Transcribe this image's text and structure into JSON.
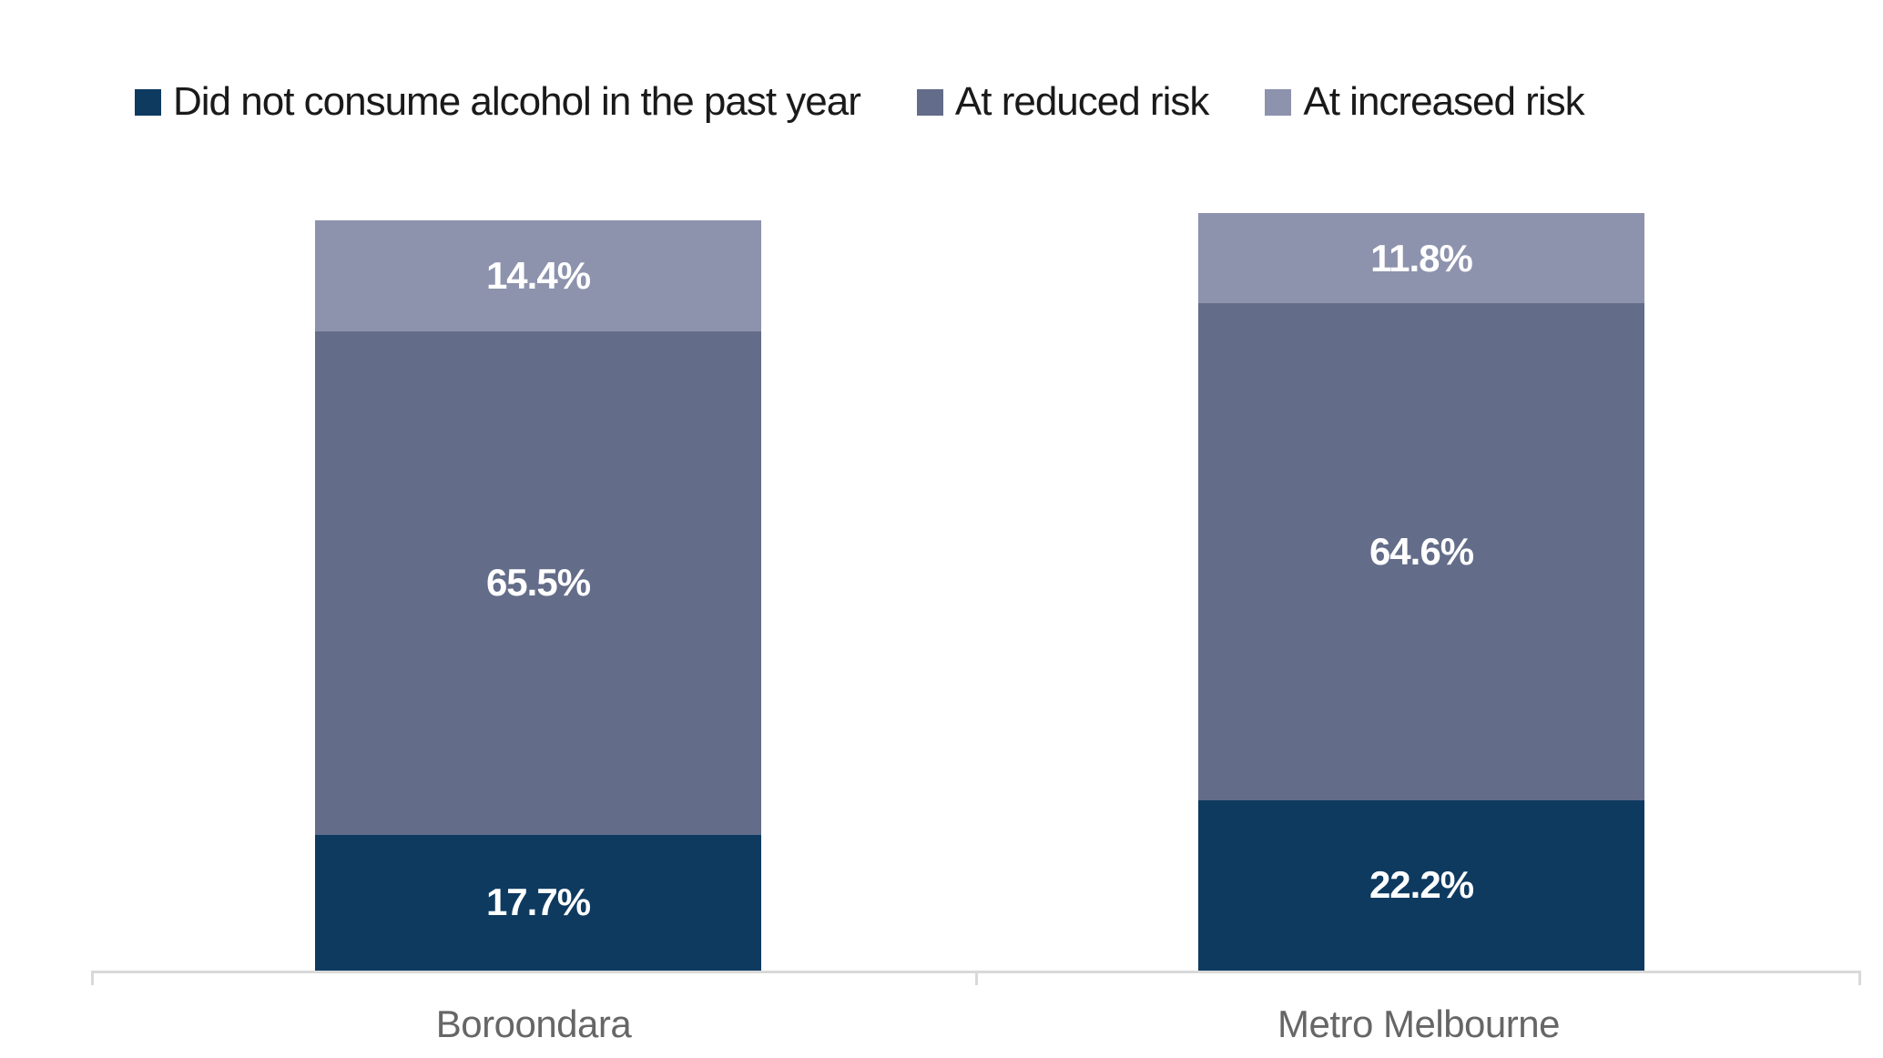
{
  "colors": {
    "no_alcohol": "#0E3A60",
    "reduced_risk": "#636D89",
    "increased_risk": "#8D92AD",
    "axis_line": "#D9D9D9",
    "category_label_text": "#666666",
    "legend_text": "#1A1A1A",
    "data_label_text": "#FFFFFF",
    "background": "#FFFFFF"
  },
  "legend": {
    "position": "top",
    "items": [
      {
        "label": "Did not consume alcohol in the past year",
        "color": "#0E3A60"
      },
      {
        "label": "At reduced risk",
        "color": "#636D89"
      },
      {
        "label": "At increased risk",
        "color": "#8D92AD"
      }
    ]
  },
  "chart_data": {
    "type": "bar",
    "stacked": true,
    "orientation": "vertical",
    "title": "",
    "xlabel": "",
    "ylabel": "",
    "ylim": [
      0,
      100
    ],
    "unit": "%",
    "grid": false,
    "y_axis_visible": false,
    "legend_position": "top",
    "categories": [
      "Boroondara",
      "Metro Melbourne"
    ],
    "series": [
      {
        "name": "Did not consume alcohol in the past year",
        "color": "#0E3A60",
        "values": [
          17.7,
          22.2
        ],
        "labels": [
          "17.7%",
          "22.2%"
        ]
      },
      {
        "name": "At reduced risk",
        "color": "#636D89",
        "values": [
          65.5,
          64.6
        ],
        "labels": [
          "65.5%",
          "64.6%"
        ]
      },
      {
        "name": "At increased risk",
        "color": "#8D92AD",
        "values": [
          14.4,
          11.8
        ],
        "labels": [
          "14.4%",
          "11.8%"
        ]
      }
    ],
    "totals": [
      97.6,
      98.6
    ]
  }
}
